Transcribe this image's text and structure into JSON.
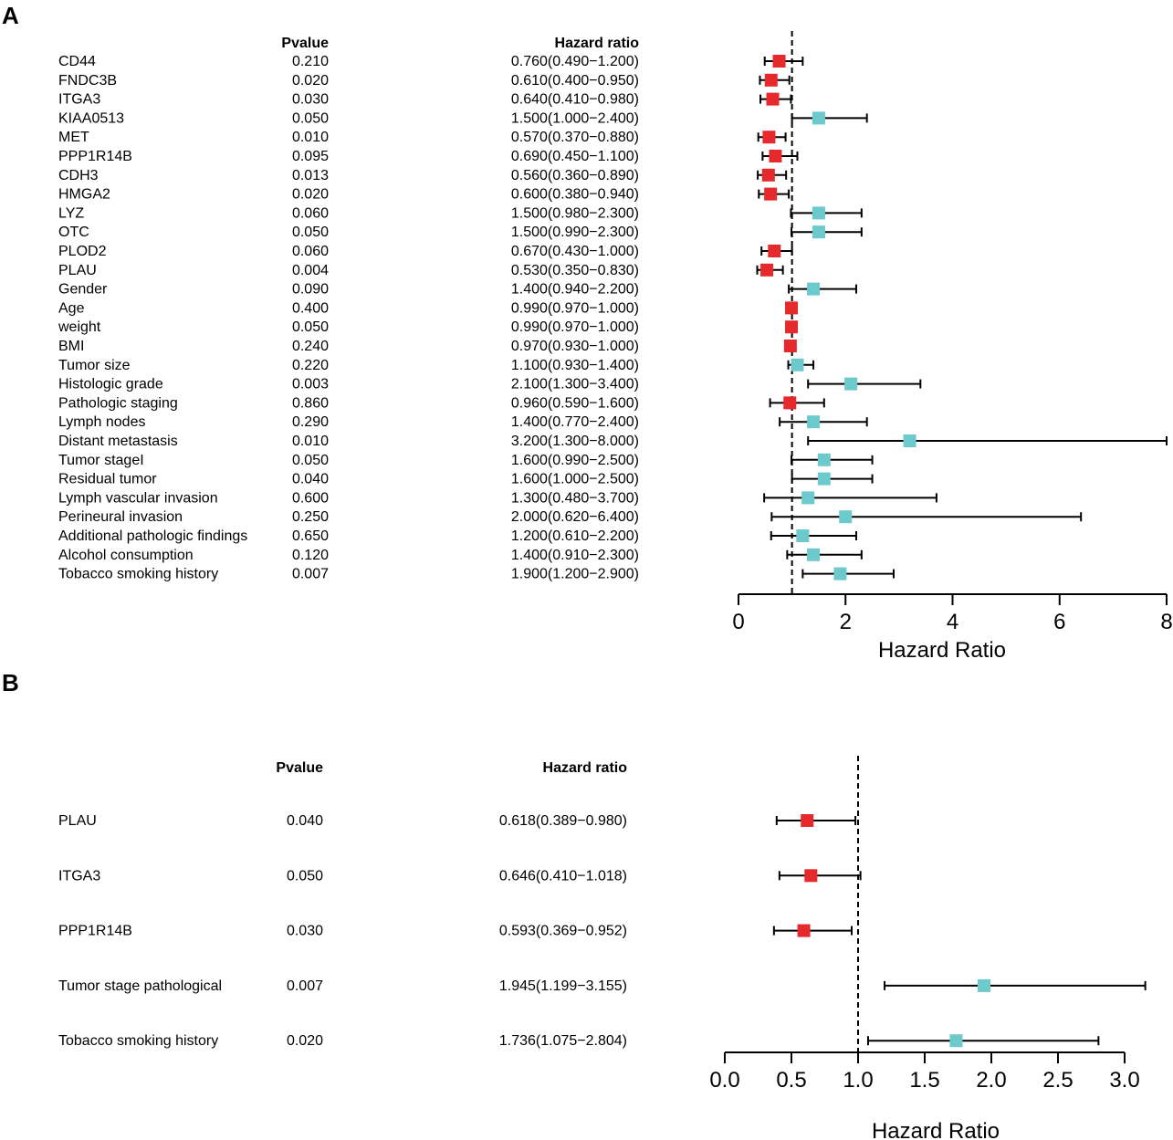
{
  "chart_data": [
    {
      "type": "forest",
      "panel": "A",
      "headers": {
        "pvalue": "Pvalue",
        "hr": "Hazard ratio"
      },
      "xlabel": "Hazard Ratio",
      "xlim": [
        0,
        8
      ],
      "xticks": [
        "0",
        "2",
        "4",
        "6",
        "8"
      ],
      "reference_line": 1,
      "colors": {
        "protective": "#e5292c",
        "risk": "#6cc9cc"
      },
      "rows": [
        {
          "label": "CD44",
          "pvalue": "0.210",
          "hr_text": "0.760(0.490−1.200)",
          "hr": 0.76,
          "lo": 0.49,
          "hi": 1.2
        },
        {
          "label": "FNDC3B",
          "pvalue": "0.020",
          "hr_text": "0.610(0.400−0.950)",
          "hr": 0.61,
          "lo": 0.4,
          "hi": 0.95
        },
        {
          "label": "ITGA3",
          "pvalue": "0.030",
          "hr_text": "0.640(0.410−0.980)",
          "hr": 0.64,
          "lo": 0.41,
          "hi": 0.98
        },
        {
          "label": "KIAA0513",
          "pvalue": "0.050",
          "hr_text": "1.500(1.000−2.400)",
          "hr": 1.5,
          "lo": 1.0,
          "hi": 2.4
        },
        {
          "label": "MET",
          "pvalue": "0.010",
          "hr_text": "0.570(0.370−0.880)",
          "hr": 0.57,
          "lo": 0.37,
          "hi": 0.88
        },
        {
          "label": "PPP1R14B",
          "pvalue": "0.095",
          "hr_text": "0.690(0.450−1.100)",
          "hr": 0.69,
          "lo": 0.45,
          "hi": 1.1
        },
        {
          "label": "CDH3",
          "pvalue": "0.013",
          "hr_text": "0.560(0.360−0.890)",
          "hr": 0.56,
          "lo": 0.36,
          "hi": 0.89
        },
        {
          "label": "HMGA2",
          "pvalue": "0.020",
          "hr_text": "0.600(0.380−0.940)",
          "hr": 0.6,
          "lo": 0.38,
          "hi": 0.94
        },
        {
          "label": "LYZ",
          "pvalue": "0.060",
          "hr_text": "1.500(0.980−2.300)",
          "hr": 1.5,
          "lo": 0.98,
          "hi": 2.3
        },
        {
          "label": "OTC",
          "pvalue": "0.050",
          "hr_text": "1.500(0.990−2.300)",
          "hr": 1.5,
          "lo": 0.99,
          "hi": 2.3
        },
        {
          "label": "PLOD2",
          "pvalue": "0.060",
          "hr_text": "0.670(0.430−1.000)",
          "hr": 0.67,
          "lo": 0.43,
          "hi": 1.0
        },
        {
          "label": "PLAU",
          "pvalue": "0.004",
          "hr_text": "0.530(0.350−0.830)",
          "hr": 0.53,
          "lo": 0.35,
          "hi": 0.83
        },
        {
          "label": "Gender",
          "pvalue": "0.090",
          "hr_text": "1.400(0.940−2.200)",
          "hr": 1.4,
          "lo": 0.94,
          "hi": 2.2
        },
        {
          "label": "Age",
          "pvalue": "0.400",
          "hr_text": "0.990(0.970−1.000)",
          "hr": 0.99,
          "lo": 0.97,
          "hi": 1.0
        },
        {
          "label": "weight",
          "pvalue": "0.050",
          "hr_text": "0.990(0.970−1.000)",
          "hr": 0.99,
          "lo": 0.97,
          "hi": 1.0
        },
        {
          "label": "BMI",
          "pvalue": "0.240",
          "hr_text": "0.970(0.930−1.000)",
          "hr": 0.97,
          "lo": 0.93,
          "hi": 1.0
        },
        {
          "label": "Tumor size",
          "pvalue": "0.220",
          "hr_text": "1.100(0.930−1.400)",
          "hr": 1.1,
          "lo": 0.93,
          "hi": 1.4
        },
        {
          "label": "Histologic grade",
          "pvalue": "0.003",
          "hr_text": "2.100(1.300−3.400)",
          "hr": 2.1,
          "lo": 1.3,
          "hi": 3.4
        },
        {
          "label": "Pathologic staging",
          "pvalue": "0.860",
          "hr_text": "0.960(0.590−1.600)",
          "hr": 0.96,
          "lo": 0.59,
          "hi": 1.6
        },
        {
          "label": "Lymph nodes",
          "pvalue": "0.290",
          "hr_text": "1.400(0.770−2.400)",
          "hr": 1.4,
          "lo": 0.77,
          "hi": 2.4
        },
        {
          "label": "Distant metastasis",
          "pvalue": "0.010",
          "hr_text": "3.200(1.300−8.000)",
          "hr": 3.2,
          "lo": 1.3,
          "hi": 8.0
        },
        {
          "label": "Tumor stageI",
          "pvalue": "0.050",
          "hr_text": "1.600(0.990−2.500)",
          "hr": 1.6,
          "lo": 0.99,
          "hi": 2.5
        },
        {
          "label": "Residual tumor",
          "pvalue": "0.040",
          "hr_text": "1.600(1.000−2.500)",
          "hr": 1.6,
          "lo": 1.0,
          "hi": 2.5
        },
        {
          "label": "Lymph vascular invasion",
          "pvalue": "0.600",
          "hr_text": "1.300(0.480−3.700)",
          "hr": 1.3,
          "lo": 0.48,
          "hi": 3.7
        },
        {
          "label": "Perineural invasion",
          "pvalue": "0.250",
          "hr_text": "2.000(0.620−6.400)",
          "hr": 2.0,
          "lo": 0.62,
          "hi": 6.4
        },
        {
          "label": "Additional pathologic findings",
          "pvalue": "0.650",
          "hr_text": "1.200(0.610−2.200)",
          "hr": 1.2,
          "lo": 0.61,
          "hi": 2.2
        },
        {
          "label": "Alcohol consumption",
          "pvalue": "0.120",
          "hr_text": "1.400(0.910−2.300)",
          "hr": 1.4,
          "lo": 0.91,
          "hi": 2.3
        },
        {
          "label": "Tobacco smoking history",
          "pvalue": "0.007",
          "hr_text": "1.900(1.200−2.900)",
          "hr": 1.9,
          "lo": 1.2,
          "hi": 2.9
        }
      ]
    },
    {
      "type": "forest",
      "panel": "B",
      "headers": {
        "pvalue": "Pvalue",
        "hr": "Hazard ratio"
      },
      "xlabel": "Hazard Ratio",
      "xlim": [
        0,
        3
      ],
      "xticks": [
        "0.0",
        "0.5",
        "1.0",
        "1.5",
        "2.0",
        "2.5",
        "3.0"
      ],
      "reference_line": 1,
      "colors": {
        "protective": "#e5292c",
        "risk": "#6cc9cc"
      },
      "rows": [
        {
          "label": "PLAU",
          "pvalue": "0.040",
          "hr_text": "0.618(0.389−0.980)",
          "hr": 0.618,
          "lo": 0.389,
          "hi": 0.98
        },
        {
          "label": "ITGA3",
          "pvalue": "0.050",
          "hr_text": "0.646(0.410−1.018)",
          "hr": 0.646,
          "lo": 0.41,
          "hi": 1.018
        },
        {
          "label": "PPP1R14B",
          "pvalue": "0.030",
          "hr_text": "0.593(0.369−0.952)",
          "hr": 0.593,
          "lo": 0.369,
          "hi": 0.952
        },
        {
          "label": "Tumor stage pathological",
          "pvalue": "0.007",
          "hr_text": "1.945(1.199−3.155)",
          "hr": 1.945,
          "lo": 1.199,
          "hi": 3.155
        },
        {
          "label": "Tobacco smoking history",
          "pvalue": "0.020",
          "hr_text": "1.736(1.075−2.804)",
          "hr": 1.736,
          "lo": 1.075,
          "hi": 2.804
        }
      ]
    }
  ]
}
